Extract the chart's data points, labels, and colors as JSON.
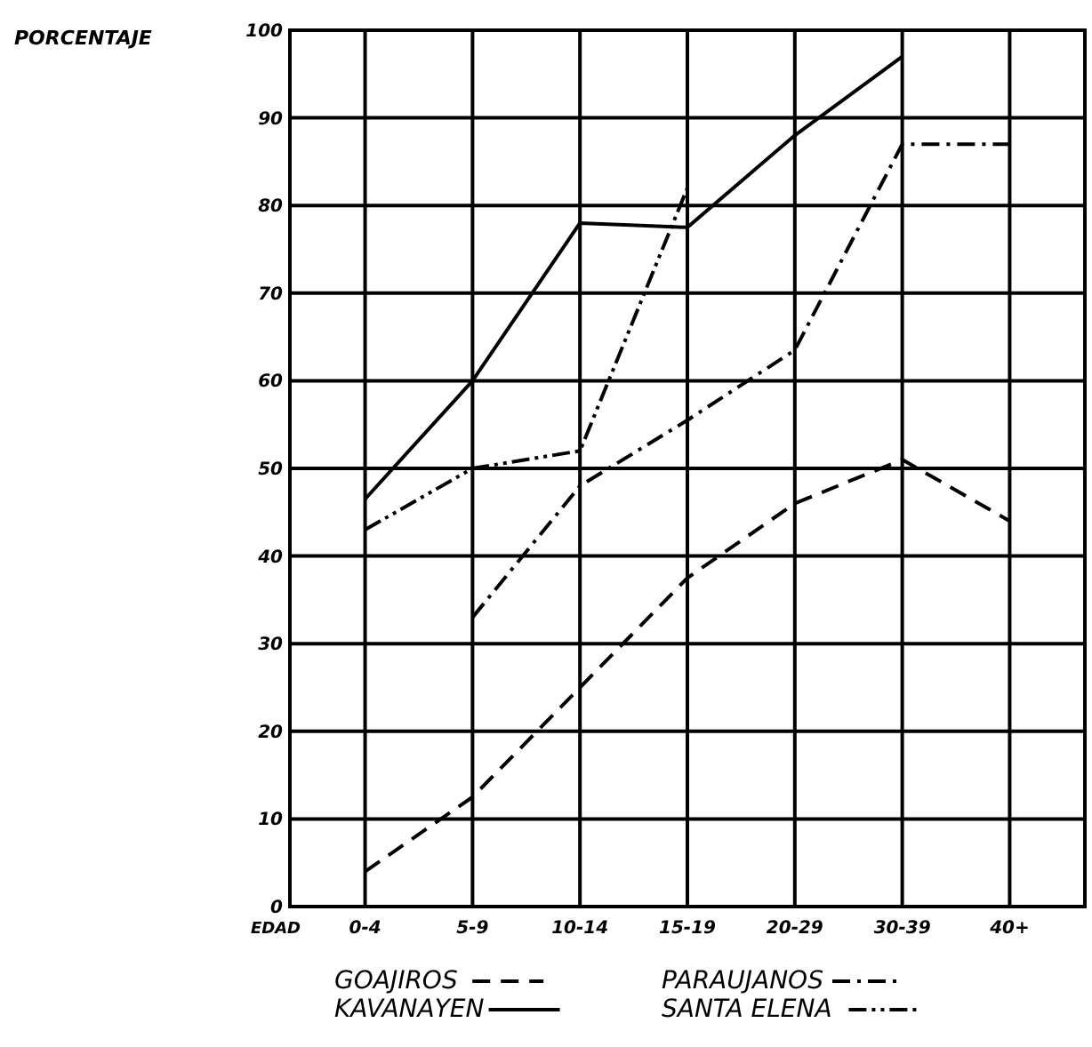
{
  "chart_data": {
    "type": "line",
    "ylabel": "PORCENTAJE",
    "xlabel": "EDAD",
    "categories": [
      "0-4",
      "5-9",
      "10-14",
      "15-19",
      "20-29",
      "30-39",
      "40+"
    ],
    "ylim": [
      0,
      100
    ],
    "yticks": [
      0,
      10,
      20,
      30,
      40,
      50,
      60,
      70,
      80,
      90,
      100
    ],
    "grid": true,
    "legend": "bottom",
    "marker": "none",
    "series": [
      {
        "name": "GOAJIROS",
        "color": "#000000",
        "line_style": "dashed",
        "values": [
          4,
          12.5,
          25,
          37.5,
          46,
          51,
          44
        ]
      },
      {
        "name": "PARAUJANOS",
        "color": "#000000",
        "line_style": "dashdot",
        "values": [
          null,
          33,
          48,
          55.5,
          63.5,
          87,
          87
        ]
      },
      {
        "name": "KAVANAYEN",
        "color": "#000000",
        "line_style": "solid",
        "values": [
          46.5,
          60,
          78,
          77.5,
          88,
          97,
          null
        ]
      },
      {
        "name": "SANTA ELENA",
        "color": "#000000",
        "line_style": "dashdotdot",
        "values": [
          43,
          50,
          52,
          82,
          null,
          null,
          null
        ]
      }
    ]
  }
}
